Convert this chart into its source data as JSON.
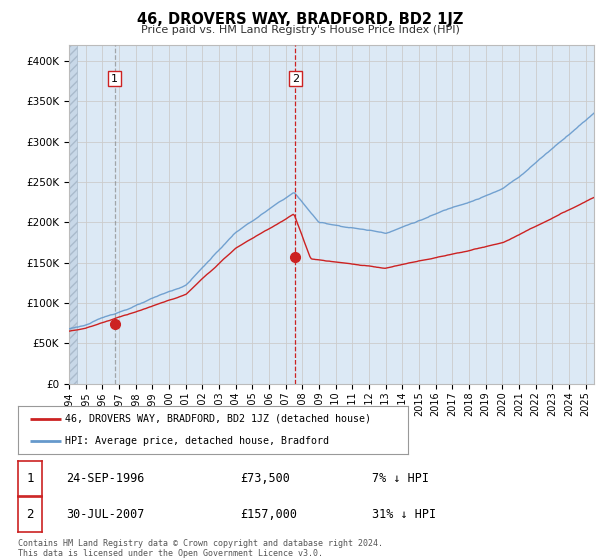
{
  "title": "46, DROVERS WAY, BRADFORD, BD2 1JZ",
  "subtitle": "Price paid vs. HM Land Registry's House Price Index (HPI)",
  "sale1_date": "24-SEP-1996",
  "sale1_price": 73500,
  "sale1_label": "1",
  "sale1_hpi_diff": "7% ↓ HPI",
  "sale2_date": "30-JUL-2007",
  "sale2_price": 157000,
  "sale2_label": "2",
  "sale2_hpi_diff": "31% ↓ HPI",
  "legend_line1": "46, DROVERS WAY, BRADFORD, BD2 1JZ (detached house)",
  "legend_line2": "HPI: Average price, detached house, Bradford",
  "footer": "Contains HM Land Registry data © Crown copyright and database right 2024.\nThis data is licensed under the Open Government Licence v3.0.",
  "ylabel_ticks": [
    "£0",
    "£50K",
    "£100K",
    "£150K",
    "£200K",
    "£250K",
    "£300K",
    "£350K",
    "£400K"
  ],
  "ylabel_vals": [
    0,
    50000,
    100000,
    150000,
    200000,
    250000,
    300000,
    350000,
    400000
  ],
  "bg_color": "#ffffff",
  "plot_bg": "#dce9f5",
  "plot_bg_right": "#ffffff",
  "red_color": "#cc2222",
  "blue_color": "#6699cc",
  "vline1_color": "#888888",
  "vline2_color": "#cc2222",
  "grid_color": "#cccccc",
  "hatch_color": "#c0cfe0",
  "sale1_x": 1996.73,
  "sale2_x": 2007.58,
  "xmin": 1994,
  "xmax": 2025.5,
  "ymin": 0,
  "ymax": 420000
}
